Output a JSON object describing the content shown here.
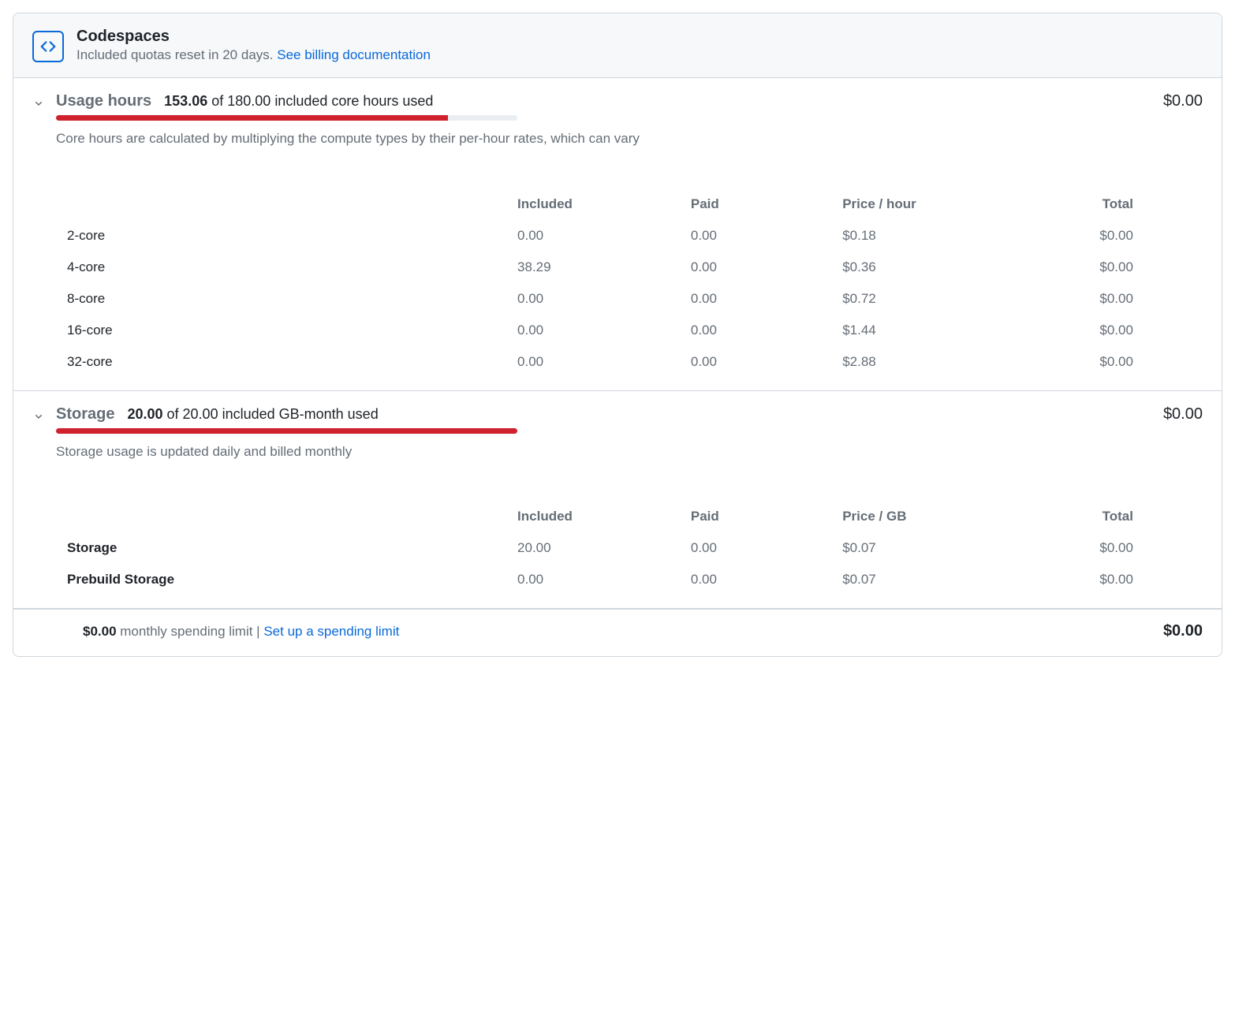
{
  "header": {
    "title": "Codespaces",
    "subtitle_prefix": "Included quotas reset in 20 days. ",
    "subtitle_link": "See billing documentation",
    "icon_color": "#0969da"
  },
  "colors": {
    "border": "#d0d7de",
    "muted_text": "#656d76",
    "link": "#0969da",
    "progress_fill": "#cf222e",
    "progress_track": "#eaeef2",
    "header_bg": "#f6f8fa"
  },
  "usage": {
    "title": "Usage hours",
    "used": "153.06",
    "quota": "180.00",
    "unit_label": "included core hours used",
    "progress_pct": 85,
    "amount": "$0.00",
    "description": "Core hours are calculated by multiplying the compute types by their per-hour rates, which can vary",
    "columns": [
      "",
      "Included",
      "Paid",
      "Price / hour",
      "Total"
    ],
    "rows": [
      {
        "label": "2-core",
        "included": "0.00",
        "paid": "0.00",
        "price": "$0.18",
        "total": "$0.00"
      },
      {
        "label": "4-core",
        "included": "38.29",
        "paid": "0.00",
        "price": "$0.36",
        "total": "$0.00"
      },
      {
        "label": "8-core",
        "included": "0.00",
        "paid": "0.00",
        "price": "$0.72",
        "total": "$0.00"
      },
      {
        "label": "16-core",
        "included": "0.00",
        "paid": "0.00",
        "price": "$1.44",
        "total": "$0.00"
      },
      {
        "label": "32-core",
        "included": "0.00",
        "paid": "0.00",
        "price": "$2.88",
        "total": "$0.00"
      }
    ]
  },
  "storage": {
    "title": "Storage",
    "used": "20.00",
    "quota": "20.00",
    "unit_label": "included GB-month used",
    "progress_pct": 100,
    "amount": "$0.00",
    "description": "Storage usage is updated daily and billed monthly",
    "columns": [
      "",
      "Included",
      "Paid",
      "Price / GB",
      "Total"
    ],
    "rows": [
      {
        "label": "Storage",
        "bold": true,
        "included": "20.00",
        "paid": "0.00",
        "price": "$0.07",
        "total": "$0.00"
      },
      {
        "label": "Prebuild Storage",
        "bold": true,
        "included": "0.00",
        "paid": "0.00",
        "price": "$0.07",
        "total": "$0.00"
      }
    ]
  },
  "footer": {
    "limit_amount": "$0.00",
    "limit_label": " monthly spending limit | ",
    "limit_link": "Set up a spending limit",
    "total": "$0.00"
  }
}
